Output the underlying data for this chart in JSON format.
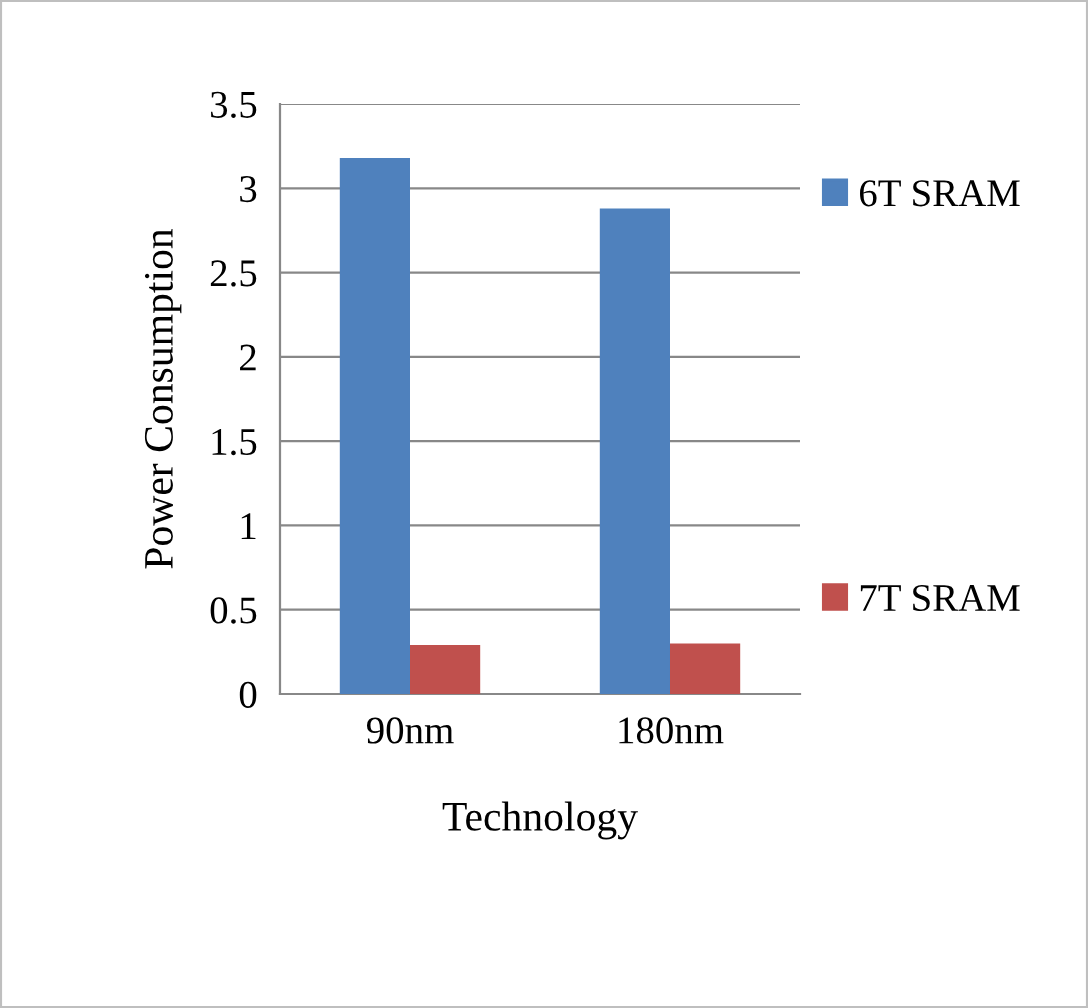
{
  "chart_data": {
    "type": "bar",
    "xlabel": "Technology",
    "ylabel": "Power Consumption",
    "categories": [
      "90nm",
      "180nm"
    ],
    "series": [
      {
        "name": "6T SRAM",
        "color": "#4f81bd",
        "values": [
          3.18,
          2.88
        ]
      },
      {
        "name": "7T SRAM",
        "color": "#c0504d",
        "values": [
          0.29,
          0.3
        ]
      }
    ],
    "ylim": [
      0,
      3.5
    ],
    "yticks": [
      0,
      0.5,
      1,
      1.5,
      2,
      2.5,
      3,
      3.5
    ],
    "grid": "y",
    "legend": "right"
  }
}
